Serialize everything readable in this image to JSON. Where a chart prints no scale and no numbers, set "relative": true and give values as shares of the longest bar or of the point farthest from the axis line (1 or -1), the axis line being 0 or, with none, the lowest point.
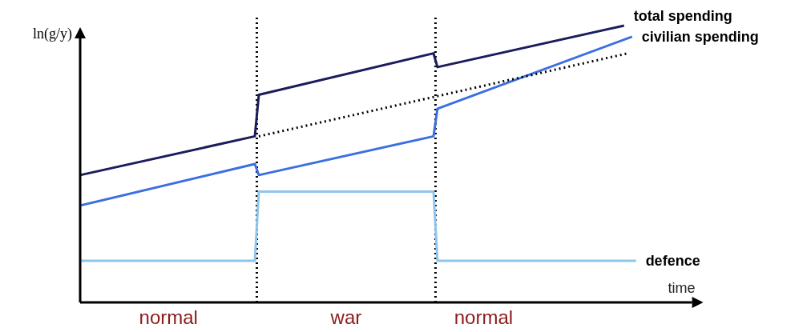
{
  "chart_data": {
    "type": "line",
    "relative": true,
    "xlabel": "time",
    "ylabel": "ln(g/y)",
    "categories": [
      null,
      null,
      null,
      null,
      null,
      null,
      null,
      null,
      null,
      null,
      null,
      null,
      null,
      null,
      null,
      null,
      null,
      null,
      null,
      null,
      null,
      null,
      null,
      null,
      null,
      null,
      null,
      null,
      null,
      null,
      null,
      null,
      null,
      null,
      null,
      null,
      null,
      null,
      null,
      null,
      null,
      null,
      null,
      null,
      null,
      null,
      null,
      null,
      null,
      null,
      null,
      null,
      null,
      null,
      null,
      null,
      null,
      null,
      null,
      null,
      null,
      null,
      null,
      null,
      null,
      null,
      null,
      null,
      null,
      null,
      null,
      null,
      null,
      null,
      null,
      null,
      null,
      null,
      null,
      null,
      null,
      null,
      null,
      null,
      null,
      null,
      null,
      null,
      null,
      null,
      null,
      null,
      null,
      null,
      null,
      null,
      null,
      null,
      null,
      null,
      null,
      null,
      null,
      null,
      null,
      null,
      null,
      null,
      null,
      null,
      null,
      null,
      null,
      null,
      null,
      null,
      null,
      null,
      null,
      null,
      null,
      null,
      null,
      null,
      null,
      null,
      null,
      null,
      null,
      null,
      null,
      null,
      null,
      null,
      null,
      null,
      null,
      null,
      null,
      null,
      null
    ],
    "series": [
      {
        "name": "total spending",
        "color": "#1c1c5c",
        "values": [
          0.46,
          null,
          null,
          null,
          null,
          null,
          null,
          null,
          null,
          null,
          null,
          null,
          null,
          null,
          null,
          null,
          null,
          null,
          null,
          null,
          null,
          null,
          null,
          null,
          null,
          null,
          null,
          null,
          null,
          null,
          null,
          null,
          null,
          null,
          null,
          null,
          null,
          null,
          null,
          null,
          null,
          null,
          null,
          null,
          0.6,
          0.75,
          null,
          null,
          null,
          null,
          null,
          null,
          null,
          null,
          null,
          null,
          null,
          null,
          null,
          null,
          null,
          null,
          null,
          null,
          null,
          null,
          null,
          null,
          null,
          null,
          null,
          null,
          null,
          null,
          null,
          null,
          null,
          null,
          null,
          null,
          null,
          null,
          null,
          null,
          null,
          null,
          null,
          null,
          null,
          0.9,
          0.85,
          null,
          null,
          null,
          null,
          null,
          null,
          null,
          null,
          null,
          null,
          null,
          null,
          null,
          null,
          null,
          null,
          null,
          null,
          null,
          null,
          null,
          null,
          null,
          null,
          null,
          null,
          null,
          null,
          null,
          null,
          null,
          null,
          null,
          null,
          null,
          null,
          null,
          null,
          null,
          null,
          null,
          null,
          null,
          null,
          null,
          null,
          1,
          null,
          null,
          null
        ]
      },
      {
        "name": "civilian spending",
        "color": "#3b6fe0",
        "values": [
          0.35,
          null,
          null,
          null,
          null,
          null,
          null,
          null,
          null,
          null,
          null,
          null,
          null,
          null,
          null,
          null,
          null,
          null,
          null,
          null,
          null,
          null,
          null,
          null,
          null,
          null,
          null,
          null,
          null,
          null,
          null,
          null,
          null,
          null,
          null,
          null,
          null,
          null,
          null,
          null,
          null,
          null,
          null,
          null,
          0.5,
          0.46,
          null,
          null,
          null,
          null,
          null,
          null,
          null,
          null,
          null,
          null,
          null,
          null,
          null,
          null,
          null,
          null,
          null,
          null,
          null,
          null,
          null,
          null,
          null,
          null,
          null,
          null,
          null,
          null,
          null,
          null,
          null,
          null,
          null,
          null,
          null,
          null,
          null,
          null,
          null,
          null,
          null,
          null,
          null,
          0.6,
          0.7,
          null,
          null,
          null,
          null,
          null,
          null,
          null,
          null,
          null,
          null,
          null,
          null,
          null,
          null,
          null,
          null,
          null,
          null,
          null,
          null,
          null,
          null,
          null,
          null,
          null,
          null,
          null,
          null,
          null,
          null,
          null,
          null,
          null,
          null,
          null,
          null,
          null,
          null,
          null,
          null,
          null,
          null,
          null,
          null,
          null,
          null,
          null,
          null,
          0.96,
          null
        ]
      },
      {
        "color": "#000000",
        "line_style": "dotted",
        "values": [
          null,
          null,
          null,
          null,
          null,
          null,
          null,
          null,
          null,
          null,
          null,
          null,
          null,
          null,
          null,
          null,
          null,
          null,
          null,
          null,
          null,
          null,
          null,
          null,
          null,
          null,
          null,
          null,
          null,
          null,
          null,
          null,
          null,
          null,
          null,
          null,
          null,
          null,
          null,
          null,
          null,
          null,
          null,
          null,
          null,
          0.6,
          null,
          null,
          null,
          null,
          null,
          null,
          null,
          null,
          null,
          null,
          null,
          null,
          null,
          null,
          null,
          null,
          null,
          null,
          null,
          null,
          null,
          null,
          null,
          null,
          null,
          null,
          null,
          null,
          null,
          null,
          null,
          null,
          null,
          null,
          null,
          null,
          null,
          null,
          null,
          null,
          null,
          null,
          null,
          null,
          null,
          null,
          null,
          null,
          null,
          null,
          null,
          null,
          null,
          null,
          null,
          null,
          null,
          null,
          null,
          null,
          null,
          null,
          null,
          null,
          null,
          null,
          null,
          null,
          null,
          null,
          null,
          null,
          null,
          null,
          null,
          null,
          null,
          null,
          null,
          null,
          null,
          null,
          null,
          null,
          null,
          null,
          null,
          null,
          null,
          null,
          null,
          null,
          0.9,
          null,
          null
        ]
      },
      {
        "name": "defence",
        "color": "#8ec5ec",
        "values": [
          0.15,
          null,
          null,
          null,
          null,
          null,
          null,
          null,
          null,
          null,
          null,
          null,
          null,
          null,
          null,
          null,
          null,
          null,
          null,
          null,
          null,
          null,
          null,
          null,
          null,
          null,
          null,
          null,
          null,
          null,
          null,
          null,
          null,
          null,
          null,
          null,
          null,
          null,
          null,
          null,
          null,
          null,
          null,
          null,
          0.15,
          0.4,
          null,
          null,
          null,
          null,
          null,
          null,
          null,
          null,
          null,
          null,
          null,
          null,
          null,
          null,
          null,
          null,
          null,
          null,
          null,
          null,
          null,
          null,
          null,
          null,
          null,
          null,
          null,
          null,
          null,
          null,
          null,
          null,
          null,
          null,
          null,
          null,
          null,
          null,
          null,
          null,
          null,
          null,
          null,
          0.4,
          0.15,
          null,
          null,
          null,
          null,
          null,
          null,
          null,
          null,
          null,
          null,
          null,
          null,
          null,
          null,
          null,
          null,
          null,
          null,
          null,
          null,
          null,
          null,
          null,
          null,
          null,
          null,
          null,
          null,
          null,
          null,
          null,
          null,
          null,
          null,
          null,
          null,
          null,
          null,
          null,
          null,
          null,
          null,
          null,
          null,
          null,
          null,
          null,
          null,
          null,
          0.15
        ]
      }
    ],
    "annotations": [
      "normal",
      "war",
      "normal"
    ],
    "legend": false
  }
}
